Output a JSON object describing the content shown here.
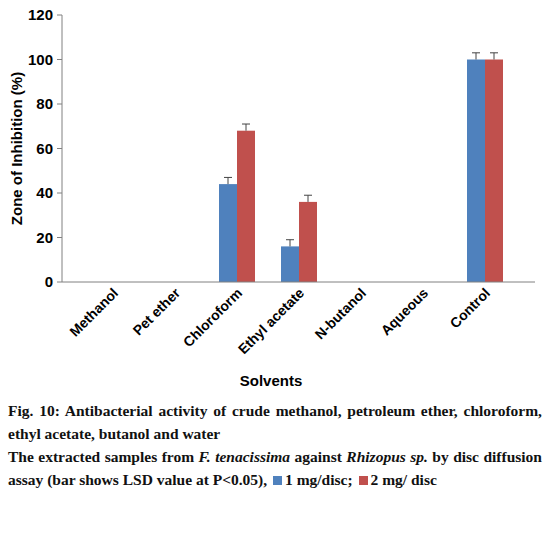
{
  "chart_data": {
    "type": "bar",
    "title": "Fig. 10: Antibacterial activity of crude methanol, petroleum ether, chloroform, ethyl acetate, butanol and water",
    "caption": [
      "The extracted samples from ",
      "F. tenacissima",
      " against ",
      "Rhizopus sp.",
      " by disc diffusion assay (bar shows LSD value at P<0.05), "
    ],
    "caption_italic": [
      false,
      true,
      false,
      true,
      false
    ],
    "x_label": "Solvents",
    "y_label": "Zone of Inhibition (%)",
    "categories": [
      "Methanol",
      "Pet ether",
      "Chloroform",
      "Ethyl acetate",
      "N-butanol",
      "Aqueous",
      "Control"
    ],
    "series": [
      {
        "name": "1 mg/disc",
        "color": "#4f81bd",
        "values": [
          0,
          0,
          44,
          16,
          0,
          0,
          100
        ],
        "errors": [
          0,
          0,
          3,
          3,
          0,
          0,
          3
        ]
      },
      {
        "name": "2 mg/ disc",
        "color": "#c0504d",
        "values": [
          0,
          0,
          68,
          36,
          0,
          0,
          100
        ],
        "errors": [
          0,
          0,
          3,
          3,
          0,
          0,
          3
        ]
      }
    ],
    "legend_separator": "; ",
    "ylim": [
      0,
      120
    ],
    "yticks": [
      0,
      20,
      40,
      60,
      80,
      100,
      120
    ],
    "grid": false
  }
}
